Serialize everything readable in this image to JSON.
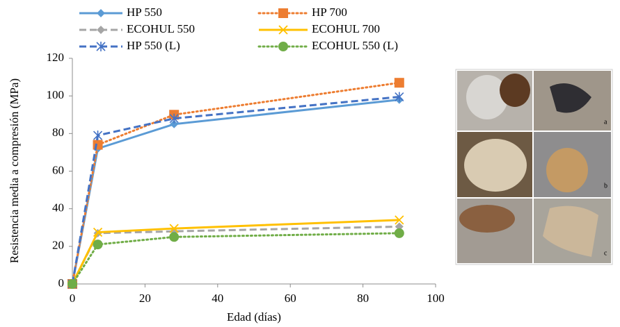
{
  "chart_data": {
    "type": "line",
    "x_label": "Edad (días)",
    "y_label": "Resistencia media  a compresión (MPa)",
    "x": [
      0,
      7,
      28,
      90
    ],
    "xlim": [
      0,
      100
    ],
    "xticks": [
      0,
      20,
      40,
      60,
      80,
      100
    ],
    "ylim": [
      0,
      120
    ],
    "yticks": [
      0,
      20,
      40,
      60,
      80,
      100,
      120
    ],
    "grid": false,
    "series": [
      {
        "name": "HP 550",
        "color": "#5b9bd5",
        "marker": "diamond",
        "dash": "solid",
        "values": [
          0,
          72,
          85,
          98
        ]
      },
      {
        "name": "HP 700",
        "color": "#ed7d31",
        "marker": "square",
        "dash": "dotted",
        "values": [
          0,
          74,
          90,
          107
        ]
      },
      {
        "name": "ECOHUL 550",
        "color": "#a5a5a5",
        "marker": "diamond",
        "dash": "dashed",
        "values": [
          0,
          27,
          28,
          30.5
        ]
      },
      {
        "name": "ECOHUL 700",
        "color": "#ffc000",
        "marker": "x",
        "dash": "solid",
        "values": [
          0,
          27.5,
          29.5,
          34
        ]
      },
      {
        "name": "HP 550 (L)",
        "color": "#4472c4",
        "marker": "asterisk",
        "dash": "dashed",
        "values": [
          0,
          79,
          88,
          99.5
        ]
      },
      {
        "name": "ECOHUL 550 (L)",
        "color": "#70ad47",
        "marker": "circle",
        "dash": "dotted",
        "values": [
          0,
          21,
          25,
          27
        ]
      }
    ]
  },
  "figure": {
    "panel_labels": [
      "a",
      "b",
      "c"
    ]
  }
}
